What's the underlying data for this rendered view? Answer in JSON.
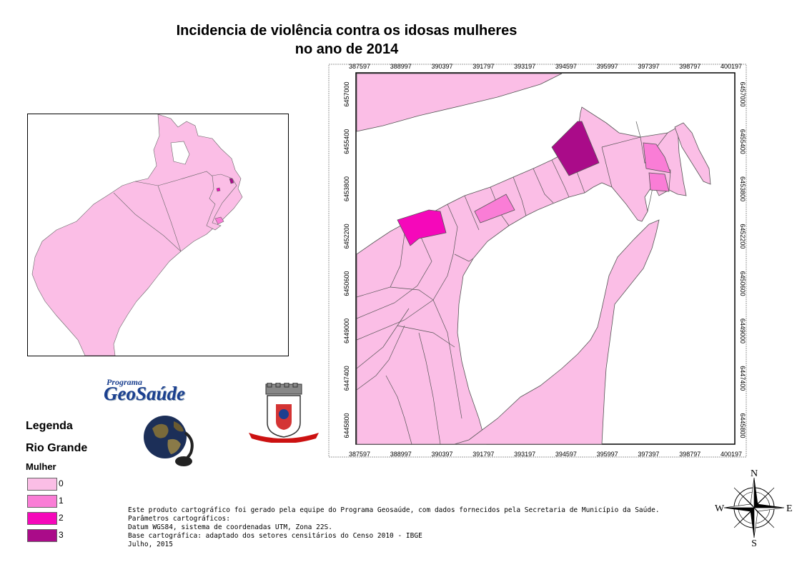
{
  "title": {
    "line1": "Incidencia de violência contra os idosas mulheres",
    "line2": "no ano de 2014"
  },
  "colors": {
    "class0": "#fbbee6",
    "class1": "#fa7dd6",
    "class2": "#f508ba",
    "class3": "#aa0b89",
    "background": "#ffffff",
    "border": "#555555"
  },
  "legend": {
    "title": "Legenda",
    "subtitle": "Rio Grande",
    "field": "Mulher",
    "items": [
      {
        "label": "0",
        "color": "#fbbee6"
      },
      {
        "label": "1",
        "color": "#fa7dd6"
      },
      {
        "label": "2",
        "color": "#f508ba"
      },
      {
        "label": "3",
        "color": "#aa0b89"
      }
    ]
  },
  "grid": {
    "x_ticks": [
      "387597",
      "388997",
      "390397",
      "391797",
      "393197",
      "394597",
      "395997",
      "397397",
      "398797",
      "400197"
    ],
    "y_ticks": [
      "6457000",
      "6455400",
      "6453800",
      "6452200",
      "6450600",
      "6449000",
      "6447400",
      "6445800"
    ]
  },
  "notes": [
    "Este produto cartográfico foi gerado pela equipe do Programa Geosaúde, com dados fornecidos pela Secretaria de Município da Saúde.",
    "Parâmetros cartográficos:",
    "Datum WGS84, sistema de coordenadas UTM, Zona 22S.",
    "Base cartográfica: adaptado dos setores censitários do Censo 2010 - IBGE",
    "Julho, 2015"
  ],
  "logo": {
    "programa": "Programa",
    "name": "GeoSaúde"
  },
  "compass": {
    "n": "N",
    "s": "S",
    "e": "E",
    "w": "W"
  }
}
